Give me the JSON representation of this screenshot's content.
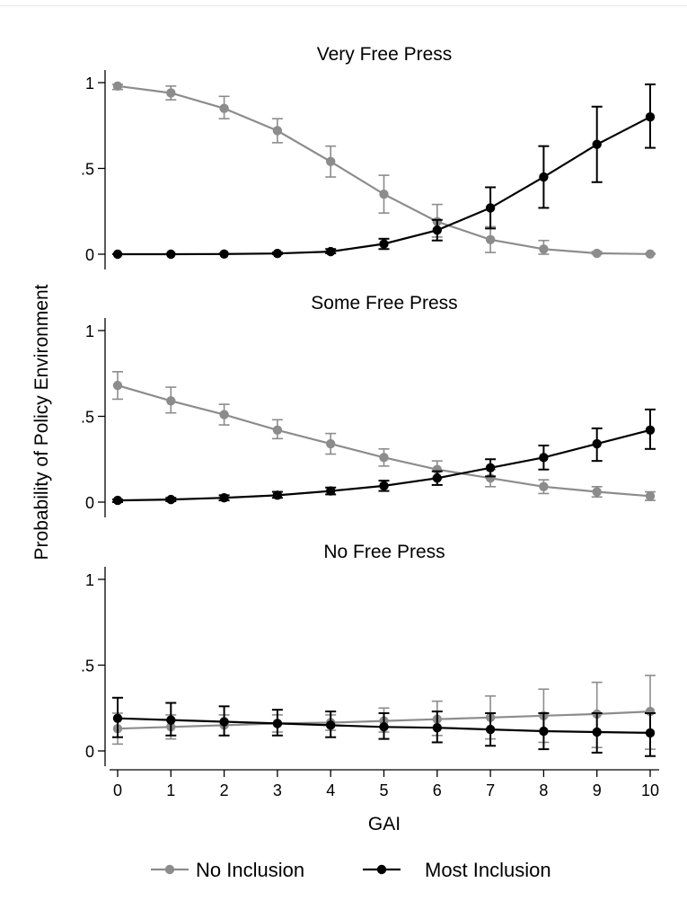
{
  "chart_data": {
    "type": "line",
    "ylabel": "Probability of Policy Environment",
    "xlabel": "GAI",
    "x": [
      0,
      1,
      2,
      3,
      4,
      5,
      6,
      7,
      8,
      9,
      10
    ],
    "xlim": [
      0,
      10
    ],
    "ylim": [
      0,
      1
    ],
    "y_ticks": [
      {
        "value": 0,
        "label": "0"
      },
      {
        "value": 0.5,
        "label": ".5"
      },
      {
        "value": 1,
        "label": "1"
      }
    ],
    "x_ticks": [
      "0",
      "1",
      "2",
      "3",
      "4",
      "5",
      "6",
      "7",
      "8",
      "9",
      "10"
    ],
    "legend": {
      "position": "bottom",
      "entries": [
        {
          "name": "No Inclusion",
          "color": "#8c8c8c"
        },
        {
          "name": "Most Inclusion",
          "color": "#000000"
        }
      ]
    },
    "panels": [
      {
        "title": "Very Free Press",
        "series": [
          {
            "name": "No Inclusion",
            "color": "#8c8c8c",
            "values": [
              0.98,
              0.94,
              0.85,
              0.72,
              0.54,
              0.35,
              0.19,
              0.085,
              0.03,
              0.005,
              0.001
            ],
            "lower": [
              0.96,
              0.9,
              0.79,
              0.65,
              0.45,
              0.24,
              0.1,
              0.01,
              0.0,
              0.0,
              0.0
            ],
            "upper": [
              0.99,
              0.98,
              0.92,
              0.79,
              0.63,
              0.46,
              0.29,
              0.16,
              0.08,
              0.015,
              0.005
            ]
          },
          {
            "name": "Most Inclusion",
            "color": "#000000",
            "values": [
              0.0,
              0.0,
              0.001,
              0.004,
              0.015,
              0.06,
              0.14,
              0.27,
              0.45,
              0.64,
              0.8
            ],
            "lower": [
              0.0,
              0.0,
              0.0,
              0.0,
              0.005,
              0.03,
              0.08,
              0.15,
              0.27,
              0.42,
              0.62
            ],
            "upper": [
              0.0,
              0.001,
              0.003,
              0.01,
              0.03,
              0.09,
              0.2,
              0.39,
              0.63,
              0.86,
              0.99
            ]
          }
        ]
      },
      {
        "title": "Some Free Press",
        "series": [
          {
            "name": "No Inclusion",
            "color": "#8c8c8c",
            "values": [
              0.68,
              0.59,
              0.51,
              0.42,
              0.34,
              0.26,
              0.19,
              0.14,
              0.09,
              0.06,
              0.035
            ],
            "lower": [
              0.6,
              0.52,
              0.45,
              0.37,
              0.28,
              0.21,
              0.14,
              0.09,
              0.05,
              0.03,
              0.01
            ],
            "upper": [
              0.76,
              0.67,
              0.57,
              0.48,
              0.4,
              0.31,
              0.24,
              0.19,
              0.13,
              0.09,
              0.06
            ]
          },
          {
            "name": "Most Inclusion",
            "color": "#000000",
            "values": [
              0.01,
              0.015,
              0.025,
              0.04,
              0.065,
              0.095,
              0.14,
              0.2,
              0.26,
              0.34,
              0.42
            ],
            "lower": [
              0.0,
              0.005,
              0.01,
              0.025,
              0.045,
              0.065,
              0.1,
              0.15,
              0.19,
              0.24,
              0.31
            ],
            "upper": [
              0.015,
              0.025,
              0.04,
              0.06,
              0.085,
              0.125,
              0.18,
              0.25,
              0.33,
              0.43,
              0.54
            ]
          }
        ]
      },
      {
        "title": "No Free Press",
        "series": [
          {
            "name": "No Inclusion",
            "color": "#8c8c8c",
            "values": [
              0.13,
              0.14,
              0.15,
              0.16,
              0.165,
              0.175,
              0.185,
              0.195,
              0.205,
              0.215,
              0.23
            ],
            "lower": [
              0.04,
              0.07,
              0.09,
              0.11,
              0.12,
              0.11,
              0.09,
              0.07,
              0.05,
              0.02,
              0.01
            ],
            "upper": [
              0.22,
              0.21,
              0.21,
              0.21,
              0.21,
              0.25,
              0.29,
              0.32,
              0.36,
              0.4,
              0.44
            ]
          },
          {
            "name": "Most Inclusion",
            "color": "#000000",
            "values": [
              0.19,
              0.18,
              0.17,
              0.16,
              0.15,
              0.14,
              0.135,
              0.125,
              0.115,
              0.11,
              0.105
            ],
            "lower": [
              0.08,
              0.09,
              0.09,
              0.09,
              0.08,
              0.07,
              0.05,
              0.03,
              0.01,
              -0.01,
              -0.03
            ],
            "upper": [
              0.31,
              0.28,
              0.26,
              0.24,
              0.23,
              0.22,
              0.23,
              0.22,
              0.22,
              0.22,
              0.22
            ]
          }
        ]
      }
    ]
  }
}
